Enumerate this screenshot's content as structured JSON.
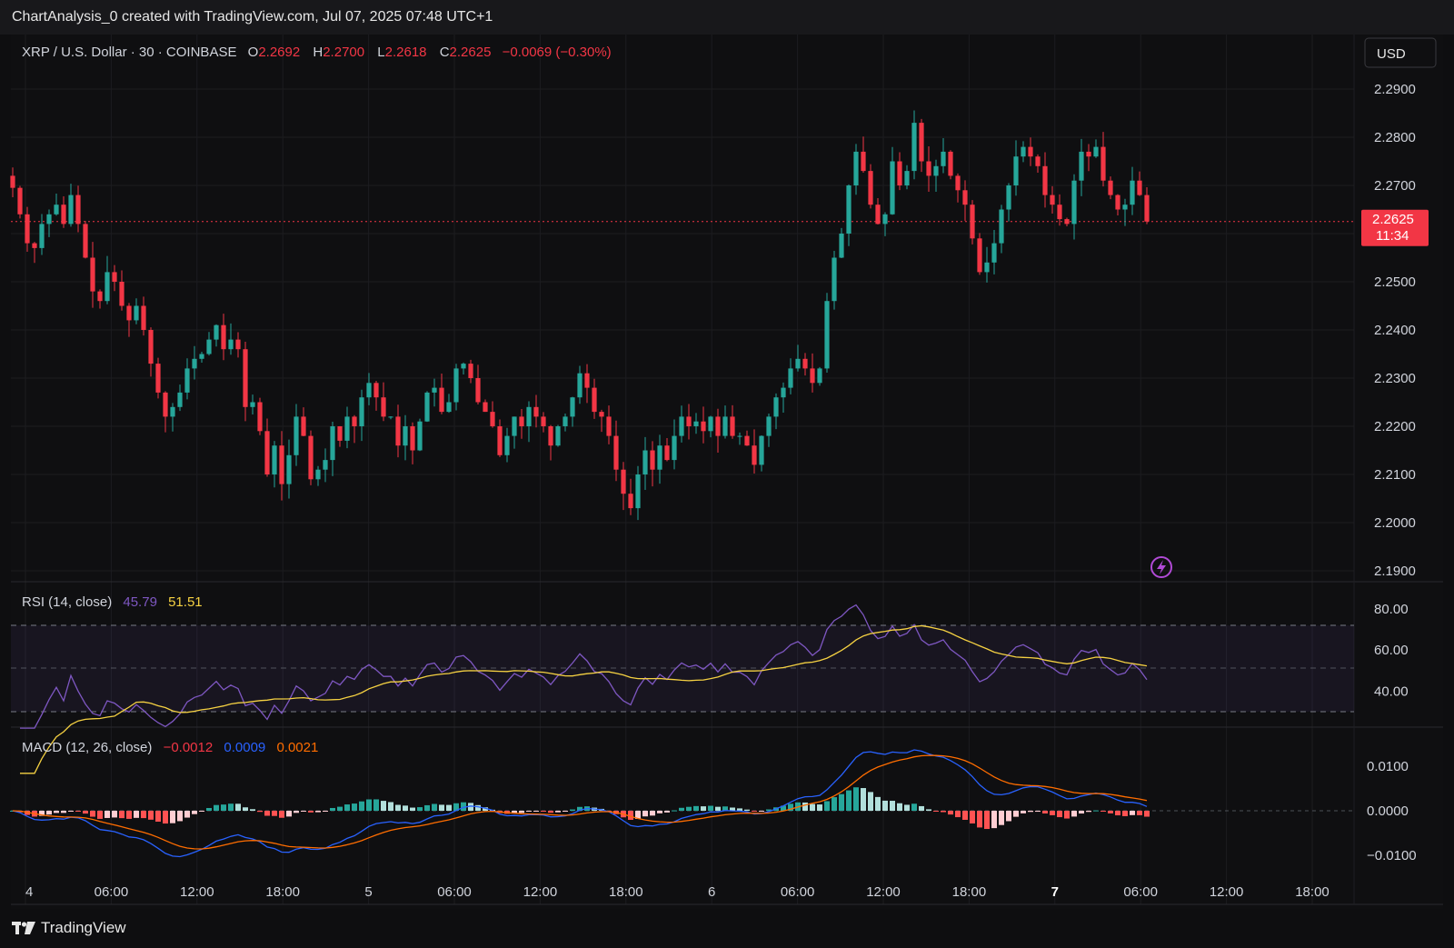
{
  "header": {
    "caption": "ChartAnalysis_0 created with TradingView.com, Jul 07, 2025 07:48 UTC+1"
  },
  "legend": {
    "symbol": "XRP / U.S. Dollar · 30 · COINBASE",
    "o_label": "O",
    "o_value": "2.2692",
    "h_label": "H",
    "h_value": "2.2700",
    "l_label": "L",
    "l_value": "2.2618",
    "c_label": "C",
    "c_value": "2.2625",
    "change": "−0.0069 (−0.30%)"
  },
  "currency_button": "USD",
  "price_tag": {
    "price": "2.2625",
    "countdown": "11:34"
  },
  "rsi": {
    "label": "RSI (14, close)",
    "value": "45.79",
    "ma_value": "51.51"
  },
  "macd": {
    "label": "MACD (12, 26, close)",
    "hist": "−0.0012",
    "macd": "0.0009",
    "signal": "0.0021"
  },
  "footer": {
    "brand": "TradingView"
  },
  "colors": {
    "up": "#26a69a",
    "down": "#f23645",
    "rsi": "#7e57c2",
    "rsi_ma": "#f5d142",
    "macd": "#2962ff",
    "signal": "#ff6d00",
    "hist_up_strong": "#26a69a",
    "hist_up_weak": "#b2dfdb",
    "hist_down_strong": "#ff5252",
    "hist_down_weak": "#ffcdd2",
    "accent_purple": "#b14ad6"
  },
  "chart_data": [
    {
      "type": "candlestick",
      "title": "XRP / U.S. Dollar · 30 · COINBASE",
      "ylim": [
        2.19,
        2.29
      ],
      "yticks": [
        "2.2900",
        "2.2800",
        "2.2700",
        "2.2600",
        "2.2500",
        "2.2400",
        "2.2300",
        "2.2200",
        "2.2100",
        "2.2000",
        "2.1900"
      ],
      "xticks": [
        "4",
        "06:00",
        "12:00",
        "18:00",
        "5",
        "06:00",
        "12:00",
        "18:00",
        "6",
        "06:00",
        "12:00",
        "18:00",
        "7",
        "06:00",
        "12:00",
        "18:00"
      ],
      "last_price": 2.2625,
      "closes": [
        2.2695,
        2.264,
        2.258,
        2.257,
        2.262,
        2.264,
        2.266,
        2.262,
        2.268,
        2.262,
        2.255,
        2.248,
        2.246,
        2.252,
        2.25,
        2.245,
        2.242,
        2.245,
        2.24,
        2.233,
        2.227,
        2.222,
        2.224,
        2.227,
        2.232,
        2.234,
        2.235,
        2.238,
        2.241,
        2.236,
        2.238,
        2.236,
        2.224,
        2.225,
        2.219,
        2.21,
        2.216,
        2.208,
        2.214,
        2.222,
        2.218,
        2.209,
        2.211,
        2.213,
        2.22,
        2.217,
        2.222,
        2.22,
        2.226,
        2.229,
        2.226,
        2.222,
        2.222,
        2.216,
        2.22,
        2.215,
        2.221,
        2.227,
        2.228,
        2.223,
        2.225,
        2.232,
        2.233,
        2.23,
        2.225,
        2.223,
        2.22,
        2.214,
        2.218,
        2.222,
        2.22,
        2.224,
        2.222,
        2.22,
        2.216,
        2.22,
        2.222,
        2.226,
        2.231,
        2.228,
        2.223,
        2.222,
        2.218,
        2.211,
        2.206,
        2.203,
        2.21,
        2.215,
        2.211,
        2.216,
        2.213,
        2.218,
        2.222,
        2.22,
        2.221,
        2.219,
        2.222,
        2.218,
        2.222,
        2.218,
        2.218,
        2.216,
        2.212,
        2.218,
        2.222,
        2.226,
        2.228,
        2.232,
        2.234,
        2.232,
        2.229,
        2.232,
        2.246,
        2.255,
        2.26,
        2.27,
        2.277,
        2.273,
        2.266,
        2.262,
        2.264,
        2.275,
        2.27,
        2.273,
        2.283,
        2.275,
        2.272,
        2.274,
        2.277,
        2.272,
        2.269,
        2.266,
        2.259,
        2.252,
        2.254,
        2.258,
        2.265,
        2.27,
        2.276,
        2.278,
        2.276,
        2.274,
        2.268,
        2.266,
        2.263,
        2.262,
        2.271,
        2.277,
        2.276,
        2.278,
        2.271,
        2.268,
        2.265,
        2.266,
        2.271,
        2.268,
        2.2625
      ],
      "rsi": {
        "ylim": [
          20,
          85
        ],
        "yticks": [
          "80.00",
          "60.00",
          "40.00"
        ],
        "upper_band": 70,
        "middle_band": 50,
        "lower_band": 30
      },
      "macd": {
        "yticks": [
          "0.0100",
          "0.0000",
          "−0.0100"
        ],
        "ylim": [
          -0.0115,
          0.0125
        ]
      }
    }
  ]
}
